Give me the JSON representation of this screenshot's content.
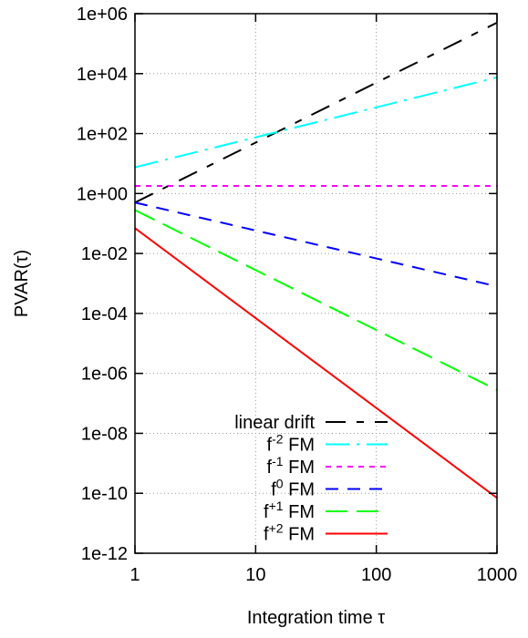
{
  "chart_data": {
    "type": "line",
    "title": "",
    "xlabel": "Integration time τ",
    "ylabel": "PVAR(τ)",
    "xscale": "log",
    "yscale": "log",
    "xlim": [
      1,
      1000
    ],
    "ylim": [
      1e-12,
      1000000.0
    ],
    "x_ticks": [
      {
        "value": 1,
        "label": "1"
      },
      {
        "value": 10,
        "label": "10"
      },
      {
        "value": 100,
        "label": "100"
      },
      {
        "value": 1000,
        "label": "1000"
      }
    ],
    "y_ticks": [
      {
        "value": 1000000.0,
        "label": "1e+06"
      },
      {
        "value": 10000.0,
        "label": "1e+04"
      },
      {
        "value": 100.0,
        "label": "1e+02"
      },
      {
        "value": 1.0,
        "label": "1e+00"
      },
      {
        "value": 0.01,
        "label": "1e-02"
      },
      {
        "value": 0.0001,
        "label": "1e-04"
      },
      {
        "value": 1e-06,
        "label": "1e-06"
      },
      {
        "value": 1e-08,
        "label": "1e-08"
      },
      {
        "value": 1e-10,
        "label": "1e-10"
      },
      {
        "value": 1e-12,
        "label": "1e-12"
      }
    ],
    "grid": true,
    "legend_position": "bottom-right",
    "series": [
      {
        "name": "linear drift",
        "base": "",
        "sup": "",
        "suffix": "",
        "color": "#000000",
        "dash": "long-short",
        "x": [
          1,
          1000
        ],
        "y": [
          0.5,
          500000
        ]
      },
      {
        "name": "f-2 FM",
        "base": "f",
        "sup": "-2",
        "suffix": " FM",
        "color": "#00ffff",
        "dash": "dash-dot",
        "x": [
          1,
          1000
        ],
        "y": [
          7.5,
          7500
        ]
      },
      {
        "name": "f-1 FM",
        "base": "f",
        "sup": "-1",
        "suffix": " FM",
        "color": "#ff00ff",
        "dash": "short",
        "x": [
          1,
          1000
        ],
        "y": [
          1.8,
          1.8
        ]
      },
      {
        "name": "f0 FM",
        "base": "f",
        "sup": "0",
        "suffix": " FM",
        "color": "#0000ff",
        "dash": "medium",
        "x": [
          1,
          1000
        ],
        "y": [
          0.5,
          0.0008
        ]
      },
      {
        "name": "f+1 FM",
        "base": "f",
        "sup": "+1",
        "suffix": " FM",
        "color": "#00ff00",
        "dash": "long",
        "x": [
          1,
          1000
        ],
        "y": [
          0.28,
          2.8e-07
        ]
      },
      {
        "name": "f+2 FM",
        "base": "f",
        "sup": "+2",
        "suffix": " FM",
        "color": "#ff0000",
        "dash": "solid",
        "x": [
          1,
          1000
        ],
        "y": [
          0.07,
          7e-11
        ]
      }
    ]
  }
}
